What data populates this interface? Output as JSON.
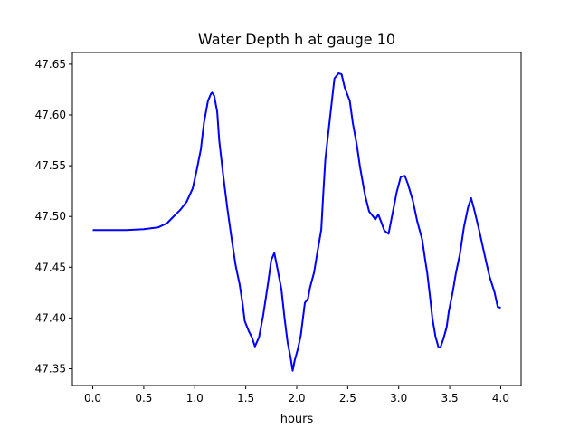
{
  "chart_data": {
    "type": "line",
    "title": "Water Depth h at gauge 10",
    "xlabel": "hours",
    "ylabel": "",
    "xlim": [
      -0.2,
      4.2
    ],
    "ylim": [
      47.3335,
      47.6615
    ],
    "xticks": [
      0.0,
      0.5,
      1.0,
      1.5,
      2.0,
      2.5,
      3.0,
      3.5,
      4.0
    ],
    "xtick_labels": [
      "0.0",
      "0.5",
      "1.0",
      "1.5",
      "2.0",
      "2.5",
      "3.0",
      "3.5",
      "4.0"
    ],
    "yticks": [
      47.35,
      47.4,
      47.45,
      47.5,
      47.55,
      47.6,
      47.65
    ],
    "ytick_labels": [
      "47.35",
      "47.40",
      "47.45",
      "47.50",
      "47.55",
      "47.60",
      "47.65"
    ],
    "grid": false,
    "series": [
      {
        "name": "h",
        "color": "#0000ff",
        "x": [
          0.0,
          0.33,
          0.5,
          0.64,
          0.73,
          0.79,
          0.86,
          0.92,
          0.98,
          1.02,
          1.06,
          1.09,
          1.13,
          1.16,
          1.17,
          1.19,
          1.22,
          1.24,
          1.28,
          1.32,
          1.36,
          1.4,
          1.44,
          1.47,
          1.49,
          1.53,
          1.56,
          1.59,
          1.63,
          1.67,
          1.72,
          1.75,
          1.78,
          1.8,
          1.85,
          1.88,
          1.91,
          1.94,
          1.96,
          1.98,
          2.01,
          2.04,
          2.08,
          2.11,
          2.13,
          2.17,
          2.2,
          2.24,
          2.26,
          2.28,
          2.32,
          2.35,
          2.37,
          2.41,
          2.44,
          2.47,
          2.52,
          2.55,
          2.59,
          2.62,
          2.67,
          2.71,
          2.75,
          2.77,
          2.8,
          2.83,
          2.86,
          2.9,
          2.93,
          2.98,
          3.02,
          3.06,
          3.09,
          3.14,
          3.18,
          3.23,
          3.26,
          3.28,
          3.31,
          3.33,
          3.36,
          3.39,
          3.41,
          3.44,
          3.47,
          3.49,
          3.53,
          3.56,
          3.6,
          3.64,
          3.68,
          3.71,
          3.74,
          3.79,
          3.82,
          3.86,
          3.89,
          3.94,
          3.97,
          4.0
        ],
        "y": [
          47.4865,
          47.4865,
          47.4874,
          47.4892,
          47.4935,
          47.4997,
          47.5067,
          47.5145,
          47.5276,
          47.546,
          47.566,
          47.592,
          47.614,
          47.621,
          47.622,
          47.619,
          47.603,
          47.575,
          47.54,
          47.508,
          47.479,
          47.452,
          47.433,
          47.413,
          47.397,
          47.387,
          47.381,
          47.372,
          47.381,
          47.402,
          47.435,
          47.457,
          47.464,
          47.454,
          47.428,
          47.4,
          47.376,
          47.361,
          47.348,
          47.358,
          47.369,
          47.383,
          47.415,
          47.419,
          47.43,
          47.445,
          47.463,
          47.487,
          47.522,
          47.556,
          47.592,
          47.619,
          47.636,
          47.641,
          47.64,
          47.627,
          47.614,
          47.592,
          47.57,
          47.549,
          47.521,
          47.505,
          47.5,
          47.497,
          47.502,
          47.494,
          47.486,
          47.483,
          47.498,
          47.524,
          47.539,
          47.54,
          47.532,
          47.515,
          47.496,
          47.477,
          47.457,
          47.444,
          47.418,
          47.4,
          47.382,
          47.371,
          47.371,
          47.38,
          47.391,
          47.406,
          47.426,
          47.444,
          47.463,
          47.49,
          47.509,
          47.518,
          47.507,
          47.486,
          47.472,
          47.454,
          47.441,
          47.425,
          47.411,
          47.41
        ]
      }
    ]
  }
}
